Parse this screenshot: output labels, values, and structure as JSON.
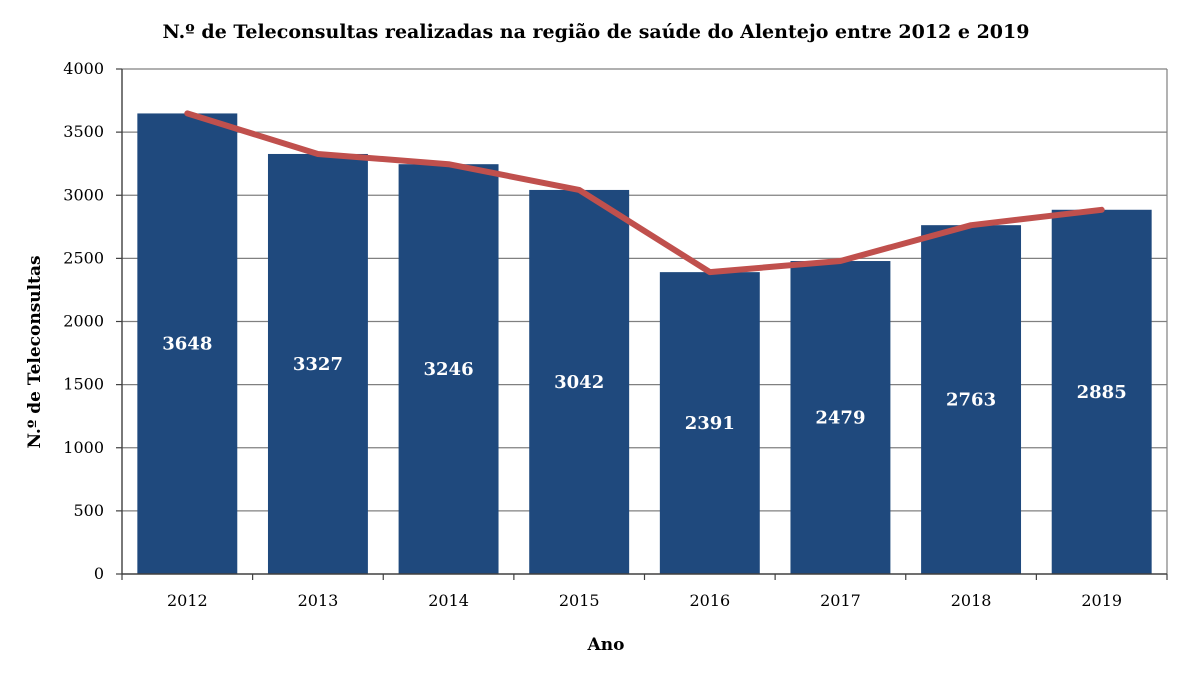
{
  "chart_data": {
    "type": "bar",
    "title": "N.º de Teleconsultas realizadas na região de saúde do Alentejo entre 2012 e 2019",
    "xlabel": "Ano",
    "ylabel": "N.º de Teleconsultas",
    "categories": [
      "2012",
      "2013",
      "2014",
      "2015",
      "2016",
      "2017",
      "2018",
      "2019"
    ],
    "values": [
      3648,
      3327,
      3246,
      3042,
      2391,
      2479,
      2763,
      2885
    ],
    "value_labels": [
      "3648",
      "3327",
      "3246",
      "3042",
      "2391",
      "2479",
      "2763",
      "2885"
    ],
    "line_overlay_values": [
      3648,
      3327,
      3246,
      3042,
      2391,
      2479,
      2763,
      2885
    ],
    "ylim": [
      0,
      4000
    ],
    "yticks": [
      0,
      500,
      1000,
      1500,
      2000,
      2500,
      3000,
      3500,
      4000
    ],
    "ytick_labels": [
      "0",
      "500",
      "1000",
      "1500",
      "2000",
      "2500",
      "3000",
      "3500",
      "4000"
    ],
    "grid": true,
    "legend": "none",
    "colors": {
      "bar": "#1F497D",
      "line": "#C0504D",
      "grid": "#808080",
      "axis": "#404040",
      "value_label": "#FFFFFF"
    }
  }
}
